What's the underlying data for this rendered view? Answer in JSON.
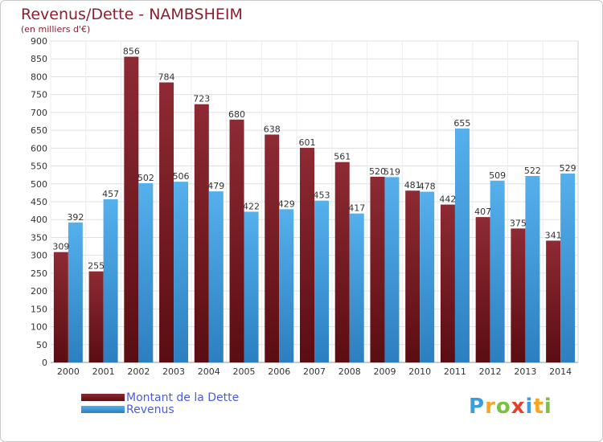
{
  "chart_data": {
    "type": "bar",
    "title": "Revenus/Dette - NAMBSHEIM",
    "subtitle": "(en milliers d'€)",
    "categories": [
      "2000",
      "2001",
      "2002",
      "2003",
      "2004",
      "2005",
      "2006",
      "2007",
      "2008",
      "2009",
      "2010",
      "2011",
      "2012",
      "2013",
      "2014"
    ],
    "series": [
      {
        "name": "Montant de la Dette",
        "color": "#7a1a22",
        "values": [
          309,
          255,
          856,
          784,
          723,
          680,
          638,
          601,
          561,
          520,
          481,
          442,
          407,
          375,
          341
        ]
      },
      {
        "name": "Revenus",
        "color": "#3a9de0",
        "values": [
          392,
          457,
          502,
          506,
          479,
          422,
          429,
          453,
          417,
          519,
          478,
          655,
          509,
          522,
          529
        ]
      }
    ],
    "ylim": [
      0,
      900
    ],
    "yticks": [
      0,
      50,
      100,
      150,
      200,
      250,
      300,
      350,
      400,
      450,
      500,
      550,
      600,
      650,
      700,
      750,
      800,
      850,
      900
    ],
    "grid": true,
    "legend_position": "bottom-left"
  },
  "logo": {
    "letters": [
      "P",
      "r",
      "o",
      "x",
      "i",
      "t",
      "i"
    ],
    "colors": [
      "#3a9de0",
      "#f5a623",
      "#7bc043",
      "#e5412d",
      "#3a9de0",
      "#f5a623",
      "#7bc043"
    ]
  }
}
